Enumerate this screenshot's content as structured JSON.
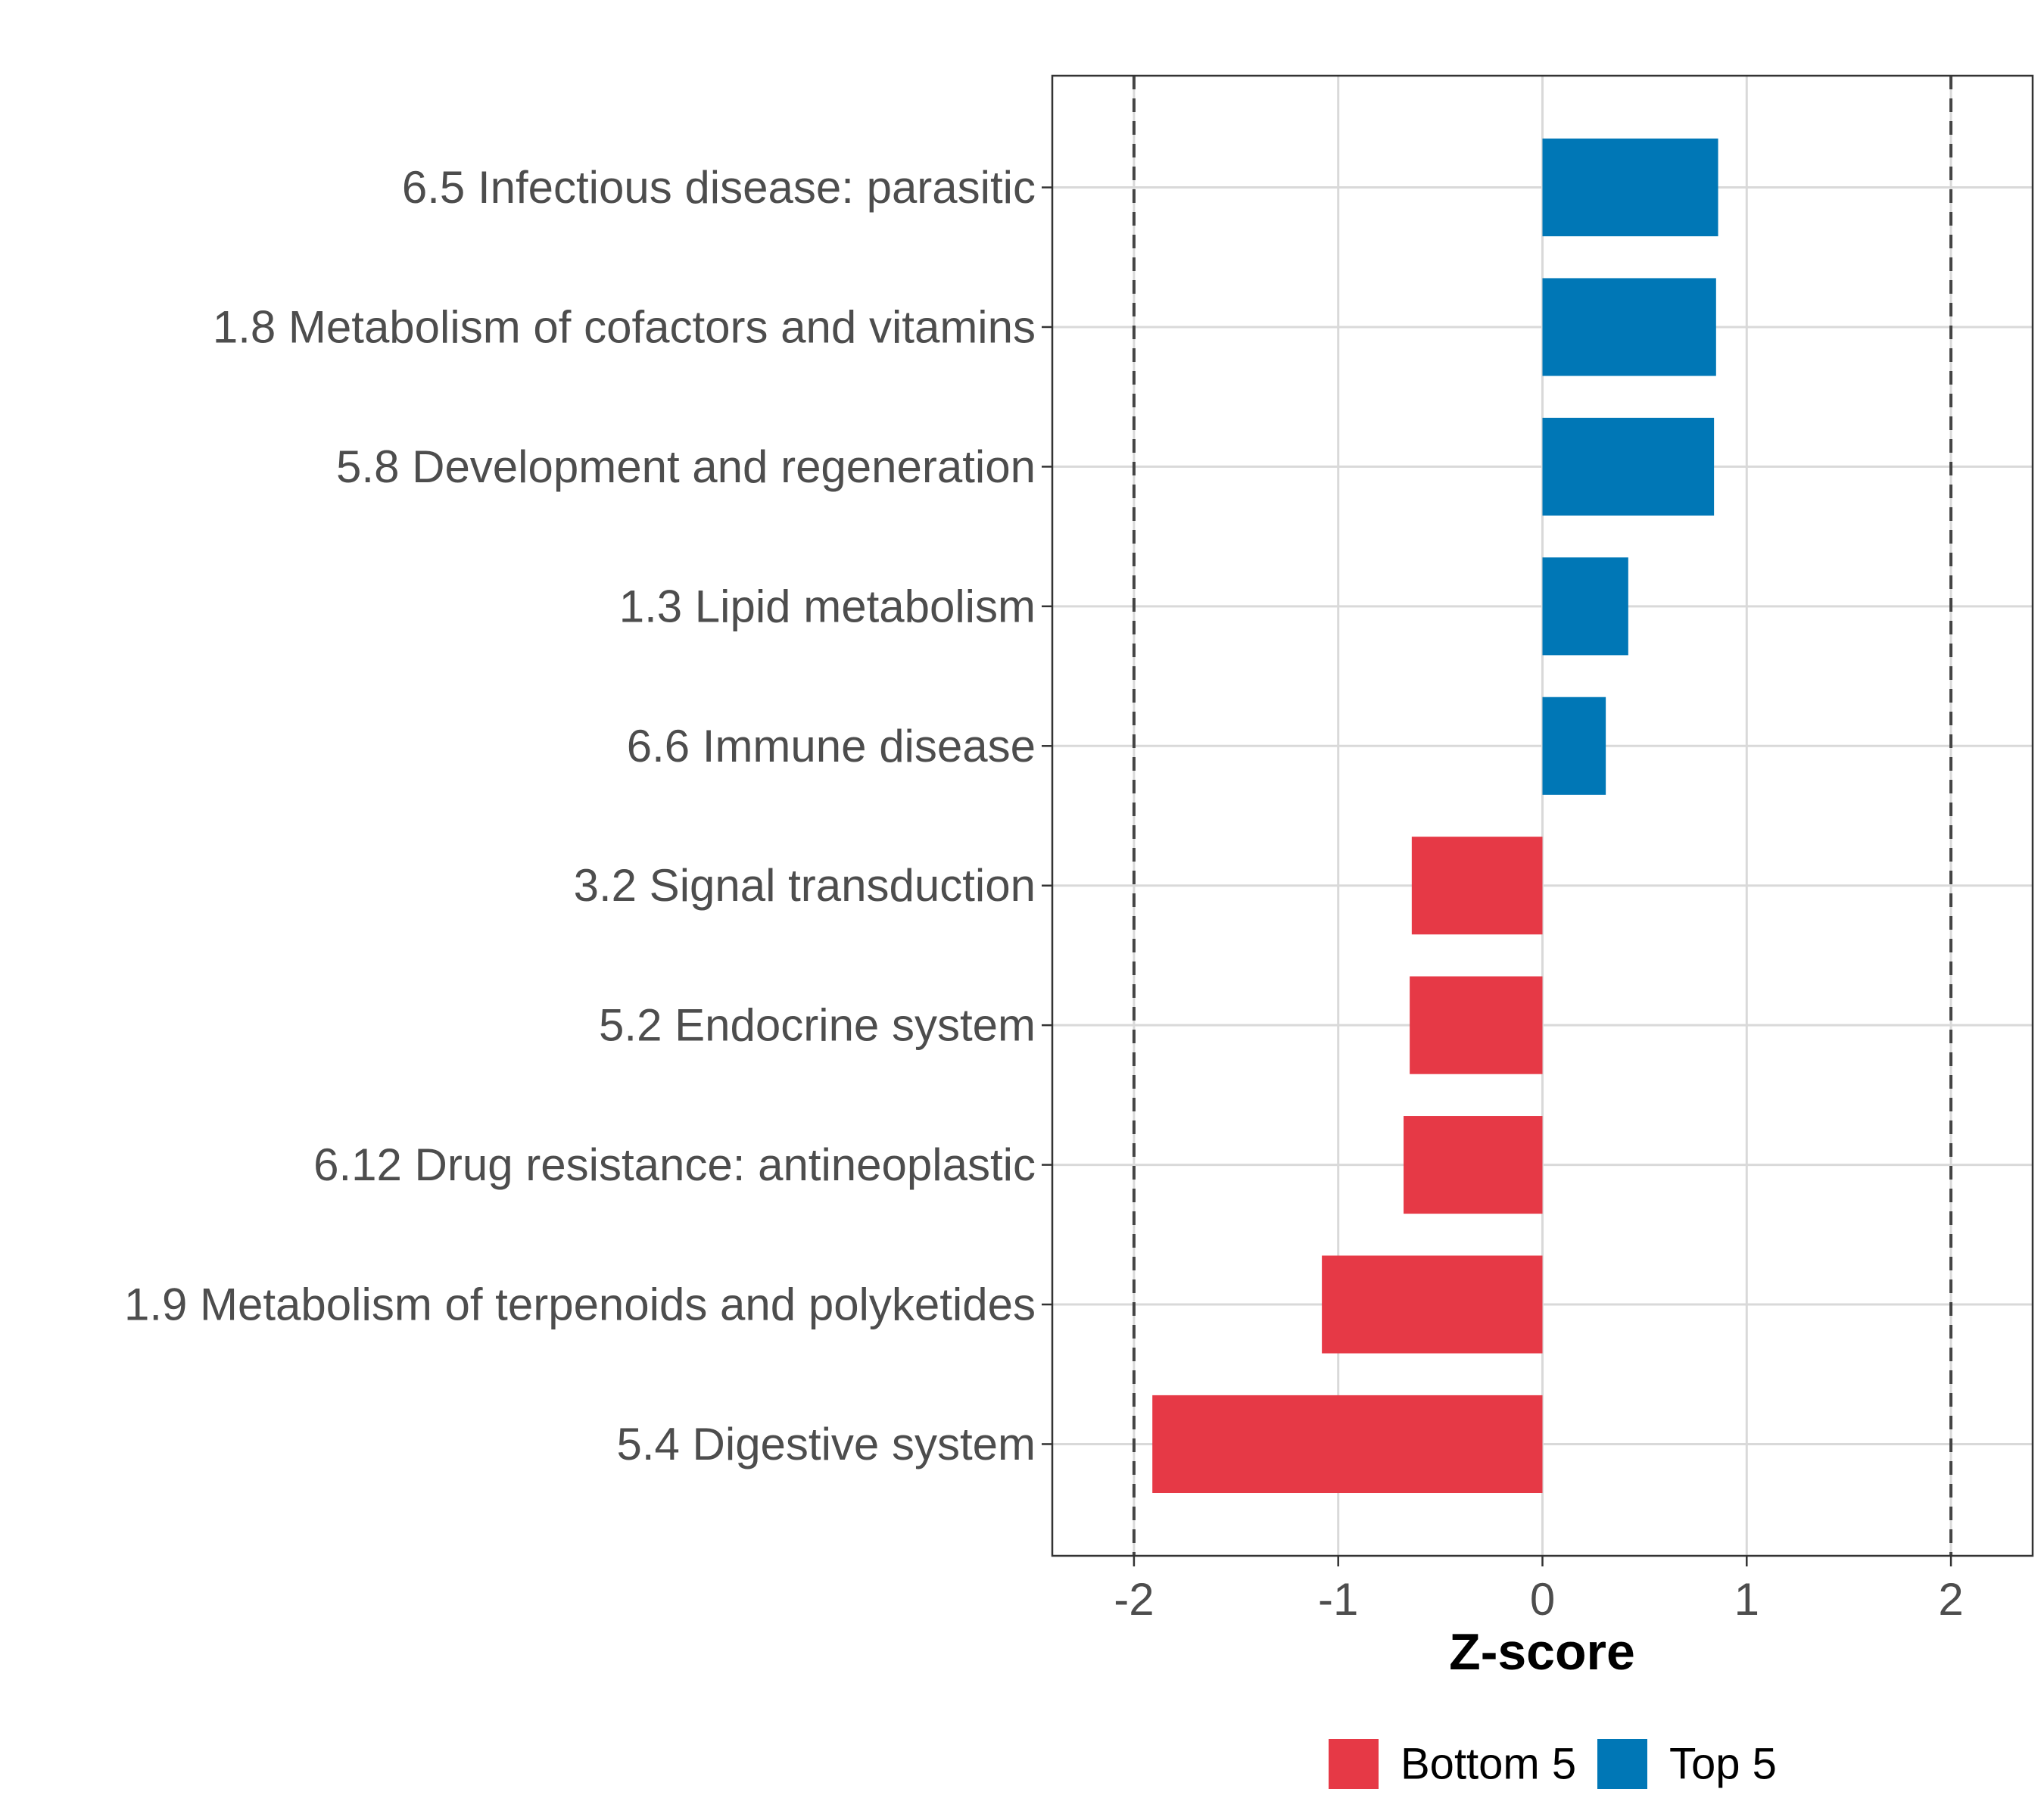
{
  "chart_data": {
    "type": "bar",
    "orientation": "horizontal",
    "xlabel": "Z-score",
    "ylabel": "",
    "xlim": [
      -2.4,
      2.4
    ],
    "x_ticks": [
      -2,
      -1,
      0,
      1,
      2
    ],
    "x_tick_labels": [
      "-2",
      "-1",
      "0",
      "1",
      "2"
    ],
    "reference_lines": [
      -2,
      2
    ],
    "grid": true,
    "categories": [
      "6.5 Infectious disease: parasitic",
      "1.8 Metabolism of cofactors and vitamins",
      "5.8 Development and regeneration",
      "1.3 Lipid metabolism",
      "6.6 Immune disease",
      "3.2 Signal transduction",
      "5.2 Endocrine system",
      "6.12 Drug resistance: antineoplastic",
      "1.9 Metabolism of terpenoids and polyketides",
      "5.4 Digestive system"
    ],
    "values": [
      0.86,
      0.85,
      0.84,
      0.42,
      0.31,
      -0.64,
      -0.65,
      -0.68,
      -1.08,
      -1.91
    ],
    "groups": [
      "Top 5",
      "Top 5",
      "Top 5",
      "Top 5",
      "Top 5",
      "Bottom 5",
      "Bottom 5",
      "Bottom 5",
      "Bottom 5",
      "Bottom 5"
    ],
    "legend": {
      "position": "bottom",
      "entries": [
        {
          "label": "Bottom 5",
          "color": "#e63946"
        },
        {
          "label": "Top 5",
          "color": "#0077b6"
        }
      ]
    }
  }
}
